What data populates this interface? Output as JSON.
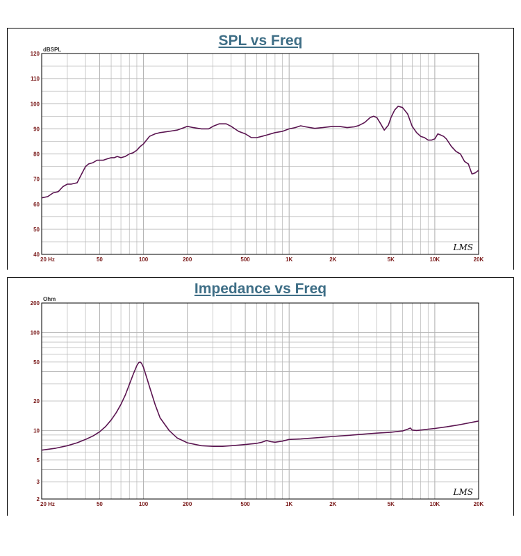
{
  "colors": {
    "title": "#3E6E86",
    "curve": "#5A1450",
    "axis_text": "#7A1A1A",
    "grid": "#B5B5B5",
    "frame": "#000000"
  },
  "chart_data": [
    {
      "type": "line",
      "title": "SPL vs Freq",
      "ylabel": "dBSPL",
      "xscale": "log",
      "xlim": [
        20,
        20000
      ],
      "ylim": [
        40,
        120
      ],
      "yscale": "linear",
      "grid": true,
      "x_tick_labels": [
        {
          "value": 20,
          "label": "20  Hz"
        },
        {
          "value": 50,
          "label": "50"
        },
        {
          "value": 100,
          "label": "100"
        },
        {
          "value": 200,
          "label": "200"
        },
        {
          "value": 500,
          "label": "500"
        },
        {
          "value": 1000,
          "label": "1K"
        },
        {
          "value": 2000,
          "label": "2K"
        },
        {
          "value": 5000,
          "label": "5K"
        },
        {
          "value": 10000,
          "label": "10K"
        },
        {
          "value": 20000,
          "label": "20K"
        }
      ],
      "y_tick_labels": [
        {
          "value": 120,
          "label": "120"
        },
        {
          "value": 110,
          "label": "110"
        },
        {
          "value": 100,
          "label": "100"
        },
        {
          "value": 90,
          "label": "90"
        },
        {
          "value": 80,
          "label": "80"
        },
        {
          "value": 70,
          "label": "70"
        },
        {
          "value": 60,
          "label": "60"
        },
        {
          "value": 50,
          "label": "50"
        },
        {
          "value": 40,
          "label": "40"
        }
      ],
      "brand": "LMS",
      "series": [
        {
          "x": [
            20,
            22,
            24,
            26,
            28,
            30,
            32,
            35,
            38,
            40,
            42,
            45,
            48,
            50,
            53,
            56,
            60,
            63,
            66,
            70,
            75,
            80,
            85,
            90,
            95,
            100,
            110,
            120,
            130,
            150,
            170,
            190,
            200,
            220,
            250,
            280,
            300,
            330,
            370,
            400,
            450,
            500,
            550,
            600,
            650,
            700,
            800,
            900,
            1000,
            1100,
            1200,
            1300,
            1500,
            1700,
            2000,
            2200,
            2500,
            2800,
            3000,
            3300,
            3600,
            3800,
            4000,
            4200,
            4500,
            4800,
            5000,
            5300,
            5600,
            6000,
            6500,
            7000,
            7500,
            8000,
            8500,
            9000,
            9500,
            10000,
            10500,
            11000,
            11500,
            12000,
            13000,
            14000,
            15000,
            16000,
            17000,
            18000,
            19000,
            20000
          ],
          "values": [
            62.5,
            63,
            64.5,
            65,
            67,
            68,
            68,
            68.5,
            72.5,
            75,
            76,
            76.5,
            77.5,
            77.5,
            77.5,
            78,
            78.5,
            78.5,
            79,
            78.5,
            79,
            80,
            80.5,
            81.5,
            83,
            84,
            87,
            88,
            88.5,
            89,
            89.5,
            90.5,
            91,
            90.5,
            90,
            90,
            91,
            92,
            92,
            91,
            89,
            88,
            86.5,
            86.5,
            87,
            87.5,
            88.5,
            89,
            90,
            90.5,
            91.2,
            90.8,
            90.2,
            90.5,
            91,
            91,
            90.5,
            90.8,
            91.3,
            92.5,
            94.5,
            95,
            94.5,
            92.5,
            89.5,
            91.5,
            94.5,
            97.5,
            99,
            98.5,
            96,
            91,
            88.5,
            87,
            86.5,
            85.5,
            85.5,
            86,
            88,
            87.5,
            87,
            86,
            83,
            81,
            80,
            77,
            76,
            72,
            72.5,
            73.5
          ]
        }
      ]
    },
    {
      "type": "line",
      "title": "Impedance vs Freq",
      "ylabel": "Ohm",
      "xscale": "log",
      "yscale": "log",
      "xlim": [
        20,
        20000
      ],
      "ylim": [
        2,
        200
      ],
      "grid": true,
      "x_tick_labels": [
        {
          "value": 20,
          "label": "20  Hz"
        },
        {
          "value": 50,
          "label": "50"
        },
        {
          "value": 100,
          "label": "100"
        },
        {
          "value": 200,
          "label": "200"
        },
        {
          "value": 500,
          "label": "500"
        },
        {
          "value": 1000,
          "label": "1K"
        },
        {
          "value": 2000,
          "label": "2K"
        },
        {
          "value": 5000,
          "label": "5K"
        },
        {
          "value": 10000,
          "label": "10K"
        },
        {
          "value": 20000,
          "label": "20K"
        }
      ],
      "y_tick_labels": [
        {
          "value": 200,
          "label": "200"
        },
        {
          "value": 100,
          "label": "100"
        },
        {
          "value": 50,
          "label": "50"
        },
        {
          "value": 20,
          "label": "20"
        },
        {
          "value": 10,
          "label": "10"
        },
        {
          "value": 5,
          "label": "5"
        },
        {
          "value": 3,
          "label": "3"
        },
        {
          "value": 2,
          "label": "2"
        }
      ],
      "brand": "LMS",
      "series": [
        {
          "x": [
            20,
            25,
            30,
            35,
            40,
            45,
            50,
            55,
            60,
            65,
            70,
            75,
            80,
            85,
            90,
            93,
            95,
            97,
            100,
            105,
            110,
            120,
            130,
            150,
            170,
            200,
            250,
            300,
            350,
            400,
            450,
            500,
            550,
            600,
            650,
            700,
            750,
            800,
            900,
            1000,
            1200,
            1500,
            2000,
            2500,
            3000,
            4000,
            5000,
            6000,
            6500,
            6800,
            7000,
            7500,
            8000,
            9000,
            10000,
            12000,
            15000,
            20000
          ],
          "values": [
            6.3,
            6.6,
            7,
            7.5,
            8.1,
            8.8,
            9.7,
            11,
            12.8,
            15.2,
            18.5,
            23,
            29.5,
            37.5,
            46,
            49.5,
            50,
            48.5,
            44,
            35,
            28,
            18.5,
            13.5,
            10,
            8.4,
            7.5,
            7.0,
            6.9,
            6.9,
            7.0,
            7.1,
            7.2,
            7.3,
            7.4,
            7.6,
            7.9,
            7.7,
            7.6,
            7.8,
            8.1,
            8.2,
            8.4,
            8.7,
            8.9,
            9.1,
            9.4,
            9.6,
            9.9,
            10.3,
            10.6,
            10.1,
            10.0,
            10.1,
            10.3,
            10.5,
            10.9,
            11.5,
            12.5
          ]
        }
      ]
    }
  ]
}
